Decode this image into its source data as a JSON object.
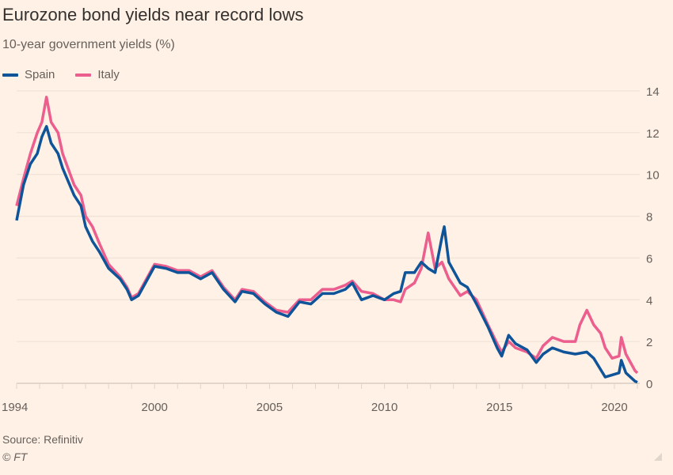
{
  "chart_data": {
    "type": "line",
    "title": "Eurozone bond yields near record lows",
    "subtitle": "10-year government yields (%)",
    "xlim": [
      1994,
      2021.2
    ],
    "ylim": [
      0,
      14
    ],
    "x_ticks": [
      1994,
      2000,
      2005,
      2010,
      2015,
      2020
    ],
    "y_ticks": [
      0,
      2,
      4,
      6,
      8,
      10,
      12,
      14
    ],
    "y_axis_position": "right",
    "grid": true,
    "legend_position": "top-left",
    "source": "Source: Refinitiv",
    "copyright": "© FT",
    "series": [
      {
        "name": "Spain",
        "color": "#0f5499",
        "points": [
          [
            1994.0,
            7.8
          ],
          [
            1994.3,
            9.5
          ],
          [
            1994.6,
            10.5
          ],
          [
            1994.9,
            11.0
          ],
          [
            1995.1,
            11.8
          ],
          [
            1995.3,
            12.3
          ],
          [
            1995.5,
            11.5
          ],
          [
            1995.8,
            11.0
          ],
          [
            1996.0,
            10.3
          ],
          [
            1996.5,
            9.0
          ],
          [
            1996.8,
            8.5
          ],
          [
            1997.0,
            7.5
          ],
          [
            1997.3,
            6.8
          ],
          [
            1997.6,
            6.3
          ],
          [
            1998.0,
            5.5
          ],
          [
            1998.5,
            5.0
          ],
          [
            1998.8,
            4.5
          ],
          [
            1999.0,
            4.0
          ],
          [
            1999.3,
            4.2
          ],
          [
            1999.7,
            5.0
          ],
          [
            2000.0,
            5.6
          ],
          [
            2000.5,
            5.5
          ],
          [
            2001.0,
            5.3
          ],
          [
            2001.5,
            5.3
          ],
          [
            2002.0,
            5.0
          ],
          [
            2002.5,
            5.3
          ],
          [
            2003.0,
            4.5
          ],
          [
            2003.5,
            3.9
          ],
          [
            2003.8,
            4.4
          ],
          [
            2004.3,
            4.3
          ],
          [
            2004.8,
            3.8
          ],
          [
            2005.3,
            3.4
          ],
          [
            2005.8,
            3.2
          ],
          [
            2006.3,
            3.9
          ],
          [
            2006.8,
            3.8
          ],
          [
            2007.3,
            4.3
          ],
          [
            2007.8,
            4.3
          ],
          [
            2008.3,
            4.5
          ],
          [
            2008.6,
            4.8
          ],
          [
            2009.0,
            4.0
          ],
          [
            2009.5,
            4.2
          ],
          [
            2010.0,
            4.0
          ],
          [
            2010.4,
            4.3
          ],
          [
            2010.7,
            4.4
          ],
          [
            2010.9,
            5.3
          ],
          [
            2011.3,
            5.3
          ],
          [
            2011.6,
            5.8
          ],
          [
            2011.9,
            5.5
          ],
          [
            2012.2,
            5.3
          ],
          [
            2012.5,
            7.0
          ],
          [
            2012.6,
            7.5
          ],
          [
            2012.8,
            5.8
          ],
          [
            2013.3,
            4.8
          ],
          [
            2013.6,
            4.6
          ],
          [
            2014.0,
            3.8
          ],
          [
            2014.5,
            2.7
          ],
          [
            2014.9,
            1.7
          ],
          [
            2015.1,
            1.3
          ],
          [
            2015.4,
            2.3
          ],
          [
            2015.7,
            1.9
          ],
          [
            2016.2,
            1.6
          ],
          [
            2016.6,
            1.0
          ],
          [
            2016.9,
            1.4
          ],
          [
            2017.3,
            1.7
          ],
          [
            2017.8,
            1.5
          ],
          [
            2018.3,
            1.4
          ],
          [
            2018.8,
            1.5
          ],
          [
            2019.1,
            1.2
          ],
          [
            2019.6,
            0.3
          ],
          [
            2019.9,
            0.4
          ],
          [
            2020.2,
            0.5
          ],
          [
            2020.3,
            1.1
          ],
          [
            2020.5,
            0.5
          ],
          [
            2020.9,
            0.1
          ],
          [
            2021.0,
            0.05
          ]
        ]
      },
      {
        "name": "Italy",
        "color": "#eb5e8d",
        "points": [
          [
            1994.0,
            8.5
          ],
          [
            1994.3,
            9.8
          ],
          [
            1994.6,
            11.0
          ],
          [
            1994.9,
            12.0
          ],
          [
            1995.1,
            12.5
          ],
          [
            1995.3,
            13.7
          ],
          [
            1995.5,
            12.5
          ],
          [
            1995.8,
            12.0
          ],
          [
            1996.0,
            11.0
          ],
          [
            1996.5,
            9.5
          ],
          [
            1996.8,
            9.0
          ],
          [
            1997.0,
            8.0
          ],
          [
            1997.3,
            7.5
          ],
          [
            1997.6,
            6.7
          ],
          [
            1998.0,
            5.7
          ],
          [
            1998.5,
            5.1
          ],
          [
            1998.8,
            4.6
          ],
          [
            1999.0,
            4.1
          ],
          [
            1999.3,
            4.3
          ],
          [
            1999.7,
            5.1
          ],
          [
            2000.0,
            5.7
          ],
          [
            2000.5,
            5.6
          ],
          [
            2001.0,
            5.4
          ],
          [
            2001.5,
            5.4
          ],
          [
            2002.0,
            5.1
          ],
          [
            2002.5,
            5.4
          ],
          [
            2003.0,
            4.6
          ],
          [
            2003.5,
            4.0
          ],
          [
            2003.8,
            4.5
          ],
          [
            2004.3,
            4.4
          ],
          [
            2004.8,
            3.9
          ],
          [
            2005.3,
            3.5
          ],
          [
            2005.8,
            3.4
          ],
          [
            2006.3,
            4.0
          ],
          [
            2006.8,
            4.0
          ],
          [
            2007.3,
            4.5
          ],
          [
            2007.8,
            4.5
          ],
          [
            2008.3,
            4.7
          ],
          [
            2008.6,
            4.9
          ],
          [
            2009.0,
            4.4
          ],
          [
            2009.5,
            4.3
          ],
          [
            2010.0,
            4.0
          ],
          [
            2010.4,
            4.0
          ],
          [
            2010.7,
            3.9
          ],
          [
            2010.9,
            4.5
          ],
          [
            2011.3,
            4.8
          ],
          [
            2011.6,
            5.5
          ],
          [
            2011.9,
            7.2
          ],
          [
            2012.2,
            5.5
          ],
          [
            2012.5,
            5.8
          ],
          [
            2012.8,
            5.0
          ],
          [
            2013.3,
            4.2
          ],
          [
            2013.6,
            4.4
          ],
          [
            2014.0,
            4.0
          ],
          [
            2014.5,
            2.8
          ],
          [
            2014.9,
            1.9
          ],
          [
            2015.1,
            1.5
          ],
          [
            2015.4,
            2.0
          ],
          [
            2015.7,
            1.7
          ],
          [
            2016.2,
            1.5
          ],
          [
            2016.6,
            1.2
          ],
          [
            2016.9,
            1.8
          ],
          [
            2017.3,
            2.2
          ],
          [
            2017.8,
            2.0
          ],
          [
            2018.3,
            2.0
          ],
          [
            2018.5,
            2.8
          ],
          [
            2018.8,
            3.5
          ],
          [
            2019.1,
            2.8
          ],
          [
            2019.4,
            2.4
          ],
          [
            2019.6,
            1.7
          ],
          [
            2019.9,
            1.2
          ],
          [
            2020.2,
            1.3
          ],
          [
            2020.3,
            2.2
          ],
          [
            2020.5,
            1.4
          ],
          [
            2020.9,
            0.6
          ],
          [
            2021.0,
            0.5
          ]
        ]
      }
    ]
  }
}
